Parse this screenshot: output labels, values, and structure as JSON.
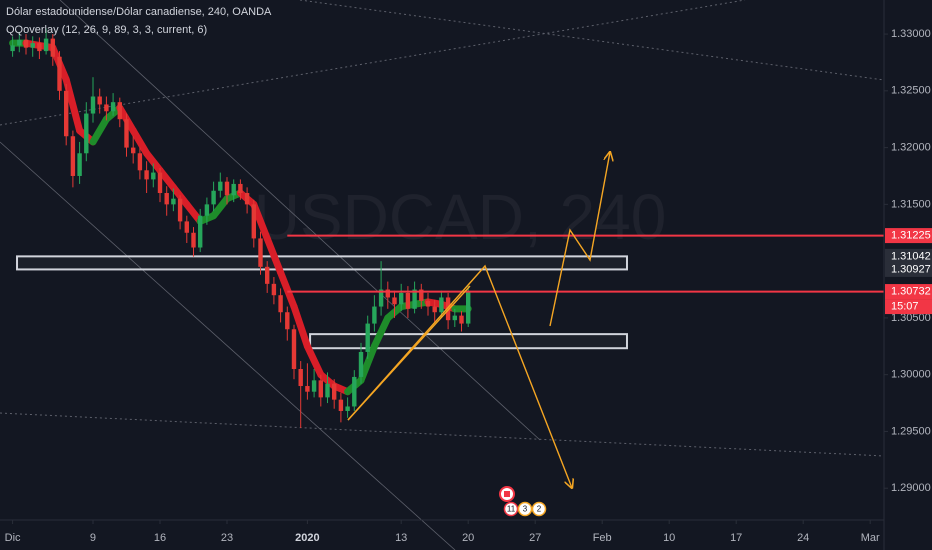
{
  "chart_data": {
    "type": "candlestick",
    "title": "Dólar estadounidense/Dólar canadiense, 240, OANDA",
    "watermark": "USDCAD, 240",
    "indicator": "QQoverlay (12, 26, 9, 89, 3, 3, current, 6)",
    "xlim": [
      -1.94,
      64.03
    ],
    "ylim": [
      1.2872,
      1.333
    ],
    "xticks": [
      {
        "value": -1,
        "label": "Dic"
      },
      {
        "value": 5,
        "label": "9"
      },
      {
        "value": 10,
        "label": "16"
      },
      {
        "value": 15,
        "label": "23"
      },
      {
        "value": 21,
        "label": "2020"
      },
      {
        "value": 28,
        "label": "13"
      },
      {
        "value": 33,
        "label": "20"
      },
      {
        "value": 38,
        "label": "27"
      },
      {
        "value": 43,
        "label": "Feb"
      },
      {
        "value": 48,
        "label": "10"
      },
      {
        "value": 53,
        "label": "17"
      },
      {
        "value": 58,
        "label": "24"
      },
      {
        "value": 63,
        "label": "Mar"
      }
    ],
    "yticks": [
      {
        "value": 1.33,
        "label": "1.33000"
      },
      {
        "value": 1.325,
        "label": "1.32500"
      },
      {
        "value": 1.32,
        "label": "1.32000"
      },
      {
        "value": 1.315,
        "label": "1.31500"
      },
      {
        "value": 1.305,
        "label": "1.30500"
      },
      {
        "value": 1.3,
        "label": "1.30000"
      },
      {
        "value": 1.295,
        "label": "1.29500"
      },
      {
        "value": 1.29,
        "label": "1.29000"
      }
    ],
    "grid": false,
    "up_color": "#26a65b",
    "down_color": "#e53935",
    "x": [
      -1,
      -0.5,
      0,
      0.5,
      1,
      1.5,
      2,
      2.5,
      3,
      3.5,
      4,
      4.5,
      5,
      5.5,
      6,
      6.5,
      7,
      7.5,
      8,
      8.5,
      9,
      9.5,
      10,
      10.5,
      11,
      11.5,
      12,
      12.5,
      13,
      13.5,
      14,
      14.5,
      15,
      15.5,
      16,
      16.5,
      17,
      17.5,
      18,
      18.5,
      19,
      19.5,
      20,
      20.5,
      21,
      21.5,
      22,
      22.5,
      23,
      23.5,
      24,
      24.5,
      25,
      25.5,
      26,
      26.5,
      27,
      27.5,
      28,
      28.5,
      29,
      29.5,
      30,
      30.5,
      31,
      31.5,
      32,
      32.5,
      33
    ],
    "open": [
      1.3285,
      1.329,
      1.3295,
      1.3288,
      1.3292,
      1.3285,
      1.3296,
      1.328,
      1.325,
      1.321,
      1.3175,
      1.3195,
      1.323,
      1.3245,
      1.3238,
      1.3232,
      1.324,
      1.3225,
      1.32,
      1.3195,
      1.318,
      1.3172,
      1.3178,
      1.316,
      1.315,
      1.3155,
      1.3135,
      1.3125,
      1.3112,
      1.314,
      1.315,
      1.3162,
      1.317,
      1.3158,
      1.3168,
      1.316,
      1.315,
      1.312,
      1.3095,
      1.308,
      1.307,
      1.3055,
      1.304,
      1.3005,
      1.299,
      1.2985,
      1.2995,
      1.298,
      1.2992,
      1.2978,
      1.2968,
      1.2972,
      1.2998,
      1.302,
      1.3045,
      1.306,
      1.3075,
      1.3068,
      1.3062,
      1.3072,
      1.3058,
      1.3075,
      1.3065,
      1.306,
      1.3055,
      1.3068,
      1.3048,
      1.3052,
      1.3045
    ],
    "high": [
      1.3298,
      1.3302,
      1.33,
      1.3298,
      1.3297,
      1.3305,
      1.33,
      1.3285,
      1.3256,
      1.3215,
      1.3205,
      1.324,
      1.3262,
      1.3252,
      1.3245,
      1.3248,
      1.3244,
      1.323,
      1.321,
      1.32,
      1.3188,
      1.3186,
      1.3182,
      1.3166,
      1.3164,
      1.3158,
      1.314,
      1.313,
      1.3146,
      1.3156,
      1.317,
      1.3178,
      1.3174,
      1.3172,
      1.3172,
      1.3165,
      1.3154,
      1.3126,
      1.31,
      1.3086,
      1.3076,
      1.306,
      1.3044,
      1.3012,
      1.301,
      1.3005,
      1.3,
      1.3002,
      1.2996,
      1.2984,
      1.298,
      1.3004,
      1.3028,
      1.3052,
      1.307,
      1.31,
      1.3082,
      1.3074,
      1.308,
      1.3078,
      1.3082,
      1.308,
      1.3072,
      1.3066,
      1.3074,
      1.3072,
      1.3058,
      1.3056,
      1.3078
    ],
    "low": [
      1.328,
      1.3284,
      1.3282,
      1.328,
      1.3278,
      1.3282,
      1.3272,
      1.3242,
      1.3202,
      1.3165,
      1.3168,
      1.3188,
      1.3222,
      1.323,
      1.3224,
      1.3228,
      1.3218,
      1.3192,
      1.3186,
      1.3172,
      1.316,
      1.3165,
      1.3152,
      1.314,
      1.3144,
      1.3128,
      1.3116,
      1.3104,
      1.3108,
      1.3132,
      1.3144,
      1.3156,
      1.315,
      1.3152,
      1.3154,
      1.3142,
      1.3112,
      1.3088,
      1.3072,
      1.3062,
      1.3046,
      1.303,
      1.2996,
      1.2953,
      1.2978,
      1.298,
      1.2972,
      1.2975,
      1.297,
      1.2958,
      1.2962,
      1.2968,
      1.2992,
      1.3014,
      1.3038,
      1.3052,
      1.3058,
      1.305,
      1.3056,
      1.305,
      1.3054,
      1.3058,
      1.3052,
      1.3046,
      1.305,
      1.304,
      1.3042,
      1.3038,
      1.3042
    ],
    "close": [
      1.329,
      1.3295,
      1.3288,
      1.3292,
      1.3285,
      1.3296,
      1.328,
      1.325,
      1.321,
      1.3175,
      1.3195,
      1.323,
      1.3245,
      1.3238,
      1.3232,
      1.324,
      1.3225,
      1.32,
      1.3195,
      1.318,
      1.3172,
      1.3178,
      1.316,
      1.315,
      1.3155,
      1.3135,
      1.3125,
      1.3112,
      1.314,
      1.315,
      1.3162,
      1.317,
      1.3158,
      1.3168,
      1.316,
      1.315,
      1.312,
      1.3095,
      1.308,
      1.307,
      1.3055,
      1.304,
      1.3005,
      1.299,
      1.2985,
      1.2995,
      1.298,
      1.2992,
      1.2978,
      1.2968,
      1.2972,
      1.2998,
      1.302,
      1.3045,
      1.306,
      1.3075,
      1.3068,
      1.3062,
      1.3072,
      1.3058,
      1.3075,
      1.3065,
      1.306,
      1.3055,
      1.3068,
      1.3048,
      1.3052,
      1.3045,
      1.3073
    ],
    "overlay": {
      "rise_color": "#1e8c2a",
      "fall_color": "#d81e28",
      "x": [
        -1,
        0,
        1,
        2,
        3,
        4,
        5,
        6,
        7,
        8,
        9,
        10,
        11,
        12,
        13,
        14,
        15,
        16,
        17,
        18,
        19,
        20,
        21,
        22,
        23,
        24,
        25,
        26,
        27,
        28,
        29,
        30,
        31,
        32,
        33
      ],
      "values": [
        1.3292,
        1.3292,
        1.329,
        1.3288,
        1.326,
        1.3215,
        1.3205,
        1.3225,
        1.3235,
        1.3215,
        1.3195,
        1.318,
        1.3165,
        1.315,
        1.3135,
        1.314,
        1.3155,
        1.316,
        1.315,
        1.312,
        1.309,
        1.306,
        1.3025,
        1.3,
        1.299,
        1.2985,
        1.2995,
        1.3025,
        1.305,
        1.306,
        1.3062,
        1.3064,
        1.3062,
        1.3058,
        1.3058
      ]
    },
    "lines": [
      {
        "value": 1.31225,
        "x0": 19.5,
        "color": "#f23645"
      },
      {
        "value": 1.30732,
        "x0": 19.5,
        "color": "#f23645"
      }
    ],
    "zones": [
      {
        "x": [
          -0.67,
          44.85
        ],
        "y": [
          1.31042,
          1.30927
        ]
      },
      {
        "x": [
          21.2,
          44.85
        ],
        "y": [
          1.30357,
          1.30233
        ]
      }
    ],
    "price_tags": [
      {
        "value": 1.31225,
        "color": "#f23645"
      },
      {
        "value": 1.31042,
        "color": "#2a2e39"
      },
      {
        "value": 1.30927,
        "color": "#2a2e39"
      },
      {
        "value": 1.30732,
        "color": "#f23645"
      }
    ],
    "countdown": "15:07",
    "events": [
      "11",
      "3",
      "2"
    ]
  }
}
